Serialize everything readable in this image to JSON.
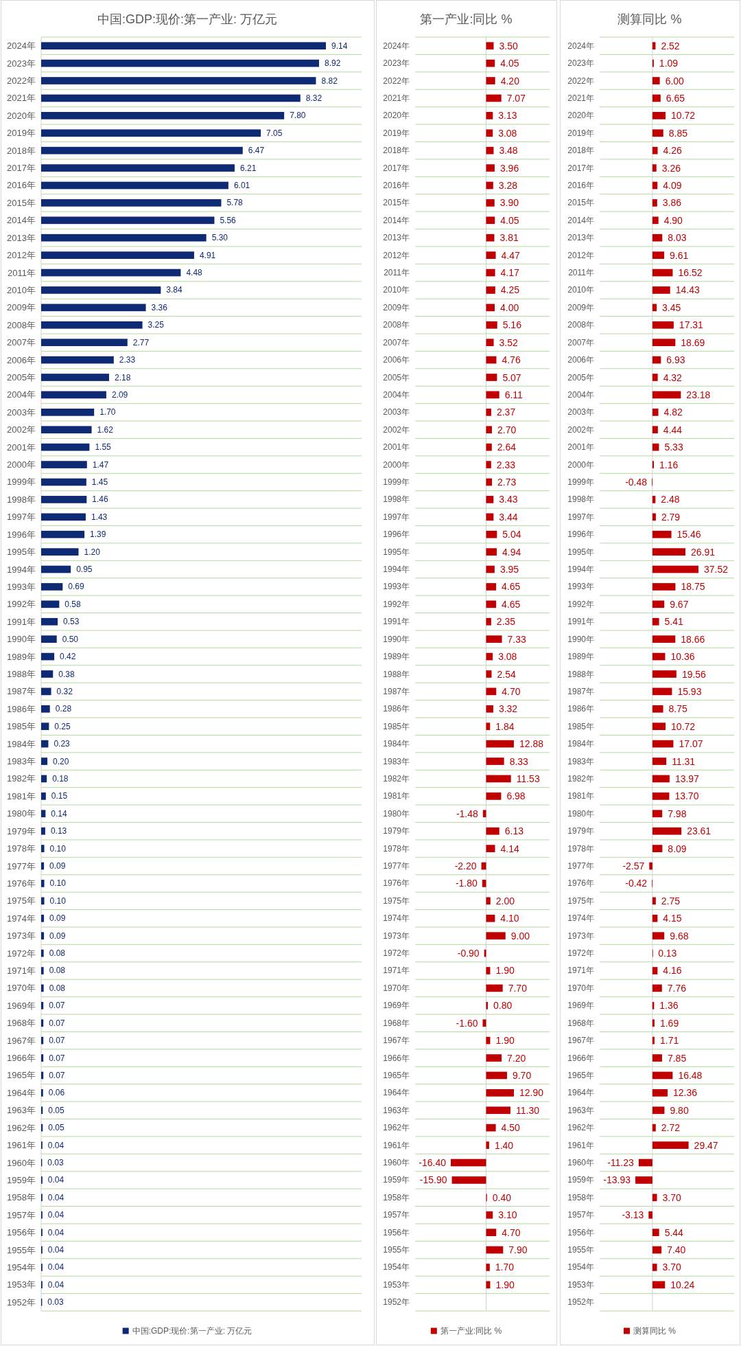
{
  "chart_data": [
    {
      "type": "bar",
      "orientation": "horizontal",
      "title": "中国:GDP:现价:第一产业: 万亿元",
      "grid": "y",
      "legend": "bottom",
      "categories": [
        "2024年",
        "2023年",
        "2022年",
        "2021年",
        "2020年",
        "2019年",
        "2018年",
        "2017年",
        "2016年",
        "2015年",
        "2014年",
        "2013年",
        "2012年",
        "2011年",
        "2010年",
        "2009年",
        "2008年",
        "2007年",
        "2006年",
        "2005年",
        "2004年",
        "2003年",
        "2002年",
        "2001年",
        "2000年",
        "1999年",
        "1998年",
        "1997年",
        "1996年",
        "1995年",
        "1994年",
        "1993年",
        "1992年",
        "1991年",
        "1990年",
        "1989年",
        "1988年",
        "1987年",
        "1986年",
        "1985年",
        "1984年",
        "1983年",
        "1982年",
        "1981年",
        "1980年",
        "1979年",
        "1978年",
        "1977年",
        "1976年",
        "1975年",
        "1974年",
        "1973年",
        "1972年",
        "1971年",
        "1970年",
        "1969年",
        "1968年",
        "1967年",
        "1966年",
        "1965年",
        "1964年",
        "1963年",
        "1962年",
        "1961年",
        "1960年",
        "1959年",
        "1958年",
        "1957年",
        "1956年",
        "1955年",
        "1954年",
        "1953年",
        "1952年"
      ],
      "series": [
        {
          "name": "中国:GDP:现价:第一产业: 万亿元",
          "color": "#0e2a74",
          "values": [
            9.14,
            8.92,
            8.82,
            8.32,
            7.8,
            7.05,
            6.47,
            6.21,
            6.01,
            5.78,
            5.56,
            5.3,
            4.91,
            4.48,
            3.84,
            3.36,
            3.25,
            2.77,
            2.33,
            2.18,
            2.09,
            1.7,
            1.62,
            1.55,
            1.47,
            1.45,
            1.46,
            1.43,
            1.39,
            1.2,
            0.95,
            0.69,
            0.58,
            0.53,
            0.5,
            0.42,
            0.38,
            0.32,
            0.28,
            0.25,
            0.23,
            0.2,
            0.18,
            0.15,
            0.14,
            0.13,
            0.1,
            0.09,
            0.1,
            0.1,
            0.09,
            0.09,
            0.08,
            0.08,
            0.08,
            0.07,
            0.07,
            0.07,
            0.07,
            0.07,
            0.06,
            0.05,
            0.05,
            0.04,
            0.03,
            0.04,
            0.04,
            0.04,
            0.04,
            0.04,
            0.04,
            0.04,
            0.03
          ],
          "value_labels": [
            "9.14",
            "8.92",
            "8.82",
            "8.32",
            "7.80",
            "7.05",
            "6.47",
            "6.21",
            "6.01",
            "5.78",
            "5.56",
            "5.30",
            "4.91",
            "4.48",
            "3.84",
            "3.36",
            "3.25",
            "2.77",
            "2.33",
            "2.18",
            "2.09",
            "1.70",
            "1.62",
            "1.55",
            "1.47",
            "1.45",
            "1.46",
            "1.43",
            "1.39",
            "1.20",
            "0.95",
            "0.69",
            "0.58",
            "0.53",
            "0.50",
            "0.42",
            "0.38",
            "0.32",
            "0.28",
            "0.25",
            "0.23",
            "0.20",
            "0.18",
            "0.15",
            "0.14",
            "0.13",
            "0.10",
            "0.09",
            "0.10",
            "0.10",
            "0.09",
            "0.09",
            "0.08",
            "0.08",
            "0.08",
            "0.07",
            "0.07",
            "0.07",
            "0.07",
            "0.07",
            "0.06",
            "0.05",
            "0.05",
            "0.04",
            "0.03",
            "0.04",
            "0.04",
            "0.04",
            "0.04",
            "0.04",
            "0.04",
            "0.04",
            "0.03"
          ]
        }
      ]
    },
    {
      "type": "bar",
      "orientation": "horizontal",
      "title": "第一产业:同比 %",
      "grid": "y",
      "legend": "bottom",
      "categories": [
        "2024年",
        "2023年",
        "2022年",
        "2021年",
        "2020年",
        "2019年",
        "2018年",
        "2017年",
        "2016年",
        "2015年",
        "2014年",
        "2013年",
        "2012年",
        "2011年",
        "2010年",
        "2009年",
        "2008年",
        "2007年",
        "2006年",
        "2005年",
        "2004年",
        "2003年",
        "2002年",
        "2001年",
        "2000年",
        "1999年",
        "1998年",
        "1997年",
        "1996年",
        "1995年",
        "1994年",
        "1993年",
        "1992年",
        "1991年",
        "1990年",
        "1989年",
        "1988年",
        "1987年",
        "1986年",
        "1985年",
        "1984年",
        "1983年",
        "1982年",
        "1981年",
        "1980年",
        "1979年",
        "1978年",
        "1977年",
        "1976年",
        "1975年",
        "1974年",
        "1973年",
        "1972年",
        "1971年",
        "1970年",
        "1969年",
        "1968年",
        "1967年",
        "1966年",
        "1965年",
        "1964年",
        "1963年",
        "1962年",
        "1961年",
        "1960年",
        "1959年",
        "1958年",
        "1957年",
        "1956年",
        "1955年",
        "1954年",
        "1953年",
        "1952年"
      ],
      "series": [
        {
          "name": "第一产业:同比 %",
          "color": "#c00000",
          "values": [
            3.5,
            4.05,
            4.2,
            7.07,
            3.13,
            3.08,
            3.48,
            3.96,
            3.28,
            3.9,
            4.05,
            3.81,
            4.47,
            4.17,
            4.25,
            4.0,
            5.16,
            3.52,
            4.76,
            5.07,
            6.11,
            2.37,
            2.7,
            2.64,
            2.33,
            2.73,
            3.43,
            3.44,
            5.04,
            4.94,
            3.95,
            4.65,
            4.65,
            2.35,
            7.33,
            3.08,
            2.54,
            4.7,
            3.32,
            1.84,
            12.88,
            8.33,
            11.53,
            6.98,
            -1.48,
            6.13,
            4.14,
            -2.2,
            -1.8,
            2.0,
            4.1,
            9.0,
            -0.9,
            1.9,
            7.7,
            0.8,
            -1.6,
            1.9,
            7.2,
            9.7,
            12.9,
            11.3,
            4.5,
            1.4,
            -16.4,
            -15.9,
            0.4,
            3.1,
            4.7,
            7.9,
            1.7,
            1.9,
            null
          ],
          "value_labels": [
            "3.50",
            "4.05",
            "4.20",
            "7.07",
            "3.13",
            "3.08",
            "3.48",
            "3.96",
            "3.28",
            "3.90",
            "4.05",
            "3.81",
            "4.47",
            "4.17",
            "4.25",
            "4.00",
            "5.16",
            "3.52",
            "4.76",
            "5.07",
            "6.11",
            "2.37",
            "2.70",
            "2.64",
            "2.33",
            "2.73",
            "3.43",
            "3.44",
            "5.04",
            "4.94",
            "3.95",
            "4.65",
            "4.65",
            "2.35",
            "7.33",
            "3.08",
            "2.54",
            "4.70",
            "3.32",
            "1.84",
            "12.88",
            "8.33",
            "11.53",
            "6.98",
            "-1.48",
            "6.13",
            "4.14",
            "-2.20",
            "-1.80",
            "2.00",
            "4.10",
            "9.00",
            "-0.90",
            "1.90",
            "7.70",
            "0.80",
            "-1.60",
            "1.90",
            "7.20",
            "9.70",
            "12.90",
            "11.30",
            "4.50",
            "1.40",
            "-16.40",
            "-15.90",
            "0.40",
            "3.10",
            "4.70",
            "7.90",
            "1.70",
            "1.90",
            null
          ]
        }
      ]
    },
    {
      "type": "bar",
      "orientation": "horizontal",
      "title": "测算同比 %",
      "grid": "y",
      "legend": "bottom",
      "categories": [
        "2024年",
        "2023年",
        "2022年",
        "2021年",
        "2020年",
        "2019年",
        "2018年",
        "2017年",
        "2016年",
        "2015年",
        "2014年",
        "2013年",
        "2012年",
        "2011年",
        "2010年",
        "2009年",
        "2008年",
        "2007年",
        "2006年",
        "2005年",
        "2004年",
        "2003年",
        "2002年",
        "2001年",
        "2000年",
        "1999年",
        "1998年",
        "1997年",
        "1996年",
        "1995年",
        "1994年",
        "1993年",
        "1992年",
        "1991年",
        "1990年",
        "1989年",
        "1988年",
        "1987年",
        "1986年",
        "1985年",
        "1984年",
        "1983年",
        "1982年",
        "1981年",
        "1980年",
        "1979年",
        "1978年",
        "1977年",
        "1976年",
        "1975年",
        "1974年",
        "1973年",
        "1972年",
        "1971年",
        "1970年",
        "1969年",
        "1968年",
        "1967年",
        "1966年",
        "1965年",
        "1964年",
        "1963年",
        "1962年",
        "1961年",
        "1960年",
        "1959年",
        "1958年",
        "1957年",
        "1956年",
        "1955年",
        "1954年",
        "1953年",
        "1952年"
      ],
      "series": [
        {
          "name": "测算同比 %",
          "color": "#c00000",
          "values": [
            2.52,
            1.09,
            6.0,
            6.65,
            10.72,
            8.85,
            4.26,
            3.26,
            4.09,
            3.86,
            4.9,
            8.03,
            9.61,
            16.52,
            14.43,
            3.45,
            17.31,
            18.69,
            6.93,
            4.32,
            23.18,
            4.82,
            4.44,
            5.33,
            1.16,
            -0.48,
            2.48,
            2.79,
            15.46,
            26.91,
            37.52,
            18.75,
            9.67,
            5.41,
            18.66,
            10.36,
            19.56,
            15.93,
            8.75,
            10.72,
            17.07,
            11.31,
            13.97,
            13.7,
            7.98,
            23.61,
            8.09,
            -2.57,
            -0.42,
            2.75,
            4.15,
            9.68,
            0.13,
            4.16,
            7.76,
            1.36,
            1.69,
            1.71,
            7.85,
            16.48,
            12.36,
            9.8,
            2.72,
            29.47,
            -11.23,
            -13.93,
            3.7,
            -3.13,
            5.44,
            7.4,
            3.7,
            10.24,
            null
          ],
          "value_labels": [
            "2.52",
            "1.09",
            "6.00",
            "6.65",
            "10.72",
            "8.85",
            "4.26",
            "3.26",
            "4.09",
            "3.86",
            "4.90",
            "8.03",
            "9.61",
            "16.52",
            "14.43",
            "3.45",
            "17.31",
            "18.69",
            "6.93",
            "4.32",
            "23.18",
            "4.82",
            "4.44",
            "5.33",
            "1.16",
            "-0.48",
            "2.48",
            "2.79",
            "15.46",
            "26.91",
            "37.52",
            "18.75",
            "9.67",
            "5.41",
            "18.66",
            "10.36",
            "19.56",
            "15.93",
            "8.75",
            "10.72",
            "17.07",
            "11.31",
            "13.97",
            "13.70",
            "7.98",
            "23.61",
            "8.09",
            "-2.57",
            "-0.42",
            "2.75",
            "4.15",
            "9.68",
            "0.13",
            "4.16",
            "7.76",
            "1.36",
            "1.69",
            "1.71",
            "7.85",
            "16.48",
            "12.36",
            "9.80",
            "2.72",
            "29.47",
            "-11.23",
            "-13.93",
            "3.70",
            "-3.13",
            "5.44",
            "7.40",
            "3.70",
            "10.24",
            null
          ]
        }
      ]
    }
  ]
}
